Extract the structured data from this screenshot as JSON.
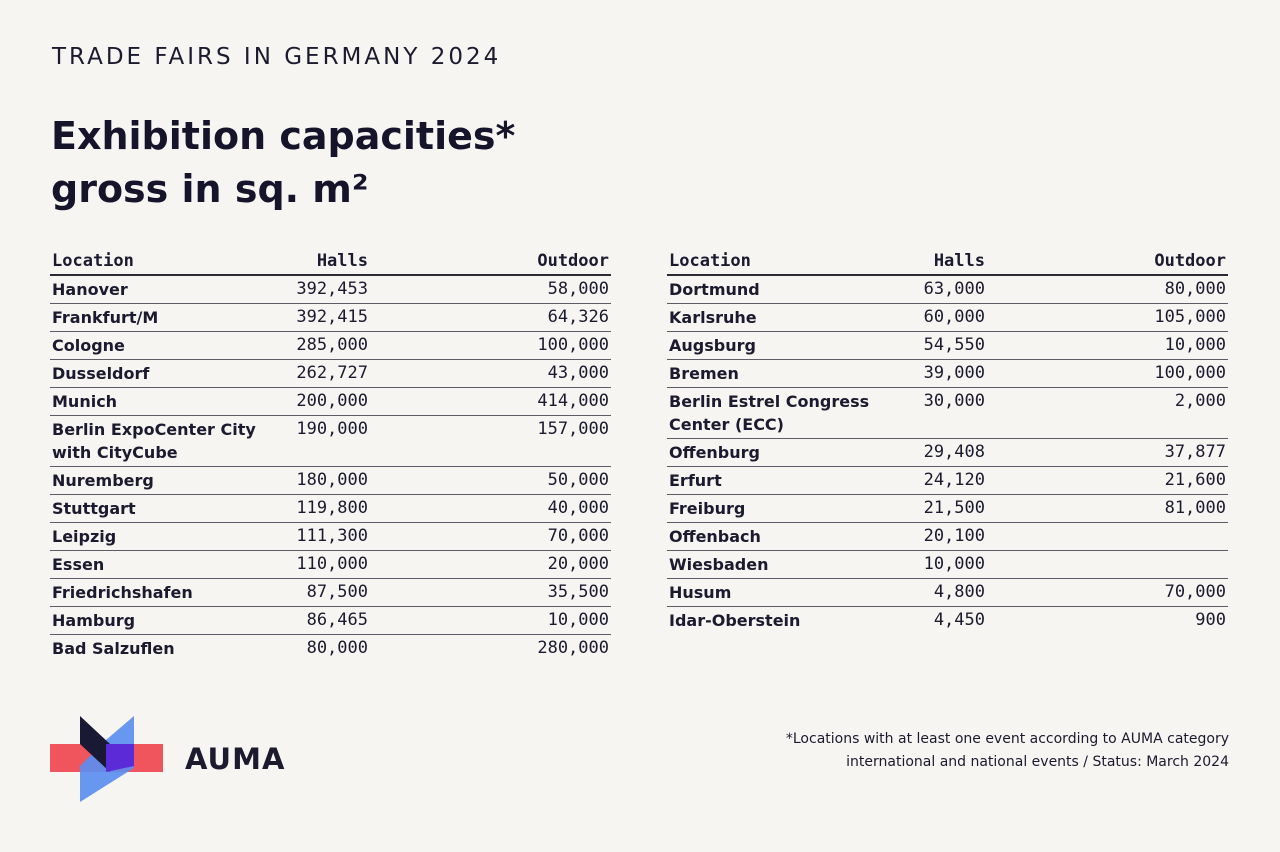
{
  "header": {
    "kicker": "TRADE FAIRS IN GERMANY 2024",
    "title_line1": "Exhibition capacities*",
    "title_line2": "gross in sq. m²"
  },
  "columns": {
    "location": "Location",
    "halls": "Halls",
    "outdoor": "Outdoor"
  },
  "table_left": [
    {
      "location": "Hanover",
      "halls": "392,453",
      "outdoor": "58,000"
    },
    {
      "location": "Frankfurt/M",
      "halls": "392,415",
      "outdoor": "64,326"
    },
    {
      "location": "Cologne",
      "halls": "285,000",
      "outdoor": "100,000"
    },
    {
      "location": "Dusseldorf",
      "halls": "262,727",
      "outdoor": "43,000"
    },
    {
      "location": "Munich",
      "halls": "200,000",
      "outdoor": "414,000"
    },
    {
      "location": "Berlin ExpoCenter City with CityCube",
      "halls": "190,000",
      "outdoor": "157,000"
    },
    {
      "location": "Nuremberg",
      "halls": "180,000",
      "outdoor": "50,000"
    },
    {
      "location": "Stuttgart",
      "halls": "119,800",
      "outdoor": "40,000"
    },
    {
      "location": "Leipzig",
      "halls": "111,300",
      "outdoor": "70,000"
    },
    {
      "location": "Essen",
      "halls": "110,000",
      "outdoor": "20,000"
    },
    {
      "location": "Friedrichshafen",
      "halls": "87,500",
      "outdoor": "35,500"
    },
    {
      "location": "Hamburg",
      "halls": "86,465",
      "outdoor": "10,000"
    },
    {
      "location": "Bad Salzuflen",
      "halls": "80,000",
      "outdoor": "280,000"
    }
  ],
  "table_right": [
    {
      "location": "Dortmund",
      "halls": "63,000",
      "outdoor": "80,000"
    },
    {
      "location": "Karlsruhe",
      "halls": "60,000",
      "outdoor": "105,000"
    },
    {
      "location": "Augsburg",
      "halls": "54,550",
      "outdoor": "10,000"
    },
    {
      "location": "Bremen",
      "halls": "39,000",
      "outdoor": "100,000"
    },
    {
      "location": "Berlin Estrel Congress Center (ECC)",
      "halls": "30,000",
      "outdoor": "2,000"
    },
    {
      "location": "Offenburg",
      "halls": "29,408",
      "outdoor": "37,877"
    },
    {
      "location": "Erfurt",
      "halls": "24,120",
      "outdoor": "21,600"
    },
    {
      "location": "Freiburg",
      "halls": "21,500",
      "outdoor": "81,000"
    },
    {
      "location": "Offenbach",
      "halls": "20,100",
      "outdoor": ""
    },
    {
      "location": "Wiesbaden",
      "halls": "10,000",
      "outdoor": ""
    },
    {
      "location": "Husum",
      "halls": "4,800",
      "outdoor": "70,000"
    },
    {
      "location": "Idar-Oberstein",
      "halls": "4,450",
      "outdoor": "900"
    }
  ],
  "footer": {
    "brand": "AUMA",
    "note_line1": "*Locations with at least one event according to AUMA category",
    "note_line2": "international and national events / Status: March 2024"
  },
  "colors": {
    "background": "#f7f5f2",
    "text": "#1b1a2e",
    "logo_coral": "#f0555d",
    "logo_blue": "#5b8ef0",
    "logo_violet": "#5a2bd6",
    "logo_navy": "#1a1935"
  }
}
